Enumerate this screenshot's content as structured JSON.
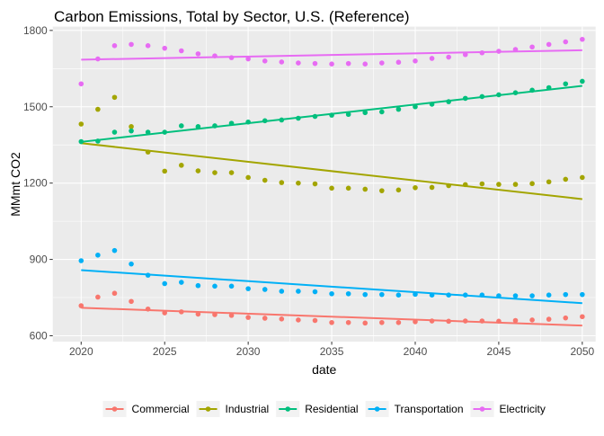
{
  "chart_data": {
    "type": "scatter",
    "title": "Carbon Emissions, Total by Sector, U.S. (Reference)",
    "xlabel": "date",
    "ylabel": "MMmt CO2",
    "xlim": [
      2018.3,
      2050.8
    ],
    "ylim": [
      577,
      1815
    ],
    "x_ticks": [
      2020,
      2025,
      2030,
      2035,
      2040,
      2045,
      2050
    ],
    "y_ticks": [
      600,
      900,
      1200,
      1500,
      1800
    ],
    "grid": true,
    "legend_position": "bottom",
    "x": [
      2020,
      2021,
      2022,
      2023,
      2024,
      2025,
      2026,
      2027,
      2028,
      2029,
      2030,
      2031,
      2032,
      2033,
      2034,
      2035,
      2036,
      2037,
      2038,
      2039,
      2040,
      2041,
      2042,
      2043,
      2044,
      2045,
      2046,
      2047,
      2048,
      2049,
      2050
    ],
    "series": [
      {
        "name": "Commercial",
        "color": "#F8766D",
        "values": [
          718,
          752,
          767,
          735,
          705,
          690,
          694,
          685,
          683,
          680,
          672,
          669,
          666,
          662,
          660,
          652,
          652,
          650,
          652,
          652,
          655,
          658,
          657,
          658,
          658,
          657,
          660,
          662,
          665,
          670,
          675
        ],
        "trend": [
          710,
          640
        ]
      },
      {
        "name": "Industrial",
        "color": "#A3A500",
        "values": [
          1432,
          1490,
          1537,
          1422,
          1322,
          1247,
          1270,
          1248,
          1241,
          1241,
          1222,
          1211,
          1202,
          1200,
          1197,
          1180,
          1180,
          1176,
          1170,
          1173,
          1182,
          1183,
          1190,
          1194,
          1197,
          1195,
          1195,
          1198,
          1205,
          1215,
          1222
        ],
        "trend": [
          1357,
          1137
        ]
      },
      {
        "name": "Residential",
        "color": "#00BF7D",
        "values": [
          1363,
          1365,
          1400,
          1405,
          1400,
          1400,
          1425,
          1422,
          1425,
          1435,
          1440,
          1445,
          1448,
          1455,
          1462,
          1467,
          1470,
          1477,
          1480,
          1490,
          1500,
          1510,
          1520,
          1533,
          1540,
          1547,
          1555,
          1565,
          1575,
          1590,
          1600
        ],
        "trend": [
          1362,
          1582
        ]
      },
      {
        "name": "Transportation",
        "color": "#00B0F6",
        "values": [
          895,
          917,
          935,
          882,
          838,
          805,
          810,
          797,
          795,
          795,
          785,
          782,
          775,
          775,
          773,
          765,
          765,
          762,
          762,
          760,
          763,
          760,
          760,
          760,
          760,
          757,
          757,
          757,
          760,
          762,
          762
        ],
        "trend": [
          858,
          728
        ]
      },
      {
        "name": "Electricity",
        "color": "#E76BF3",
        "values": [
          1590,
          1688,
          1740,
          1745,
          1740,
          1730,
          1720,
          1708,
          1700,
          1693,
          1688,
          1680,
          1676,
          1672,
          1670,
          1668,
          1670,
          1668,
          1672,
          1675,
          1680,
          1690,
          1695,
          1705,
          1712,
          1718,
          1725,
          1735,
          1745,
          1755,
          1765
        ],
        "trend": [
          1685,
          1722
        ]
      }
    ]
  }
}
